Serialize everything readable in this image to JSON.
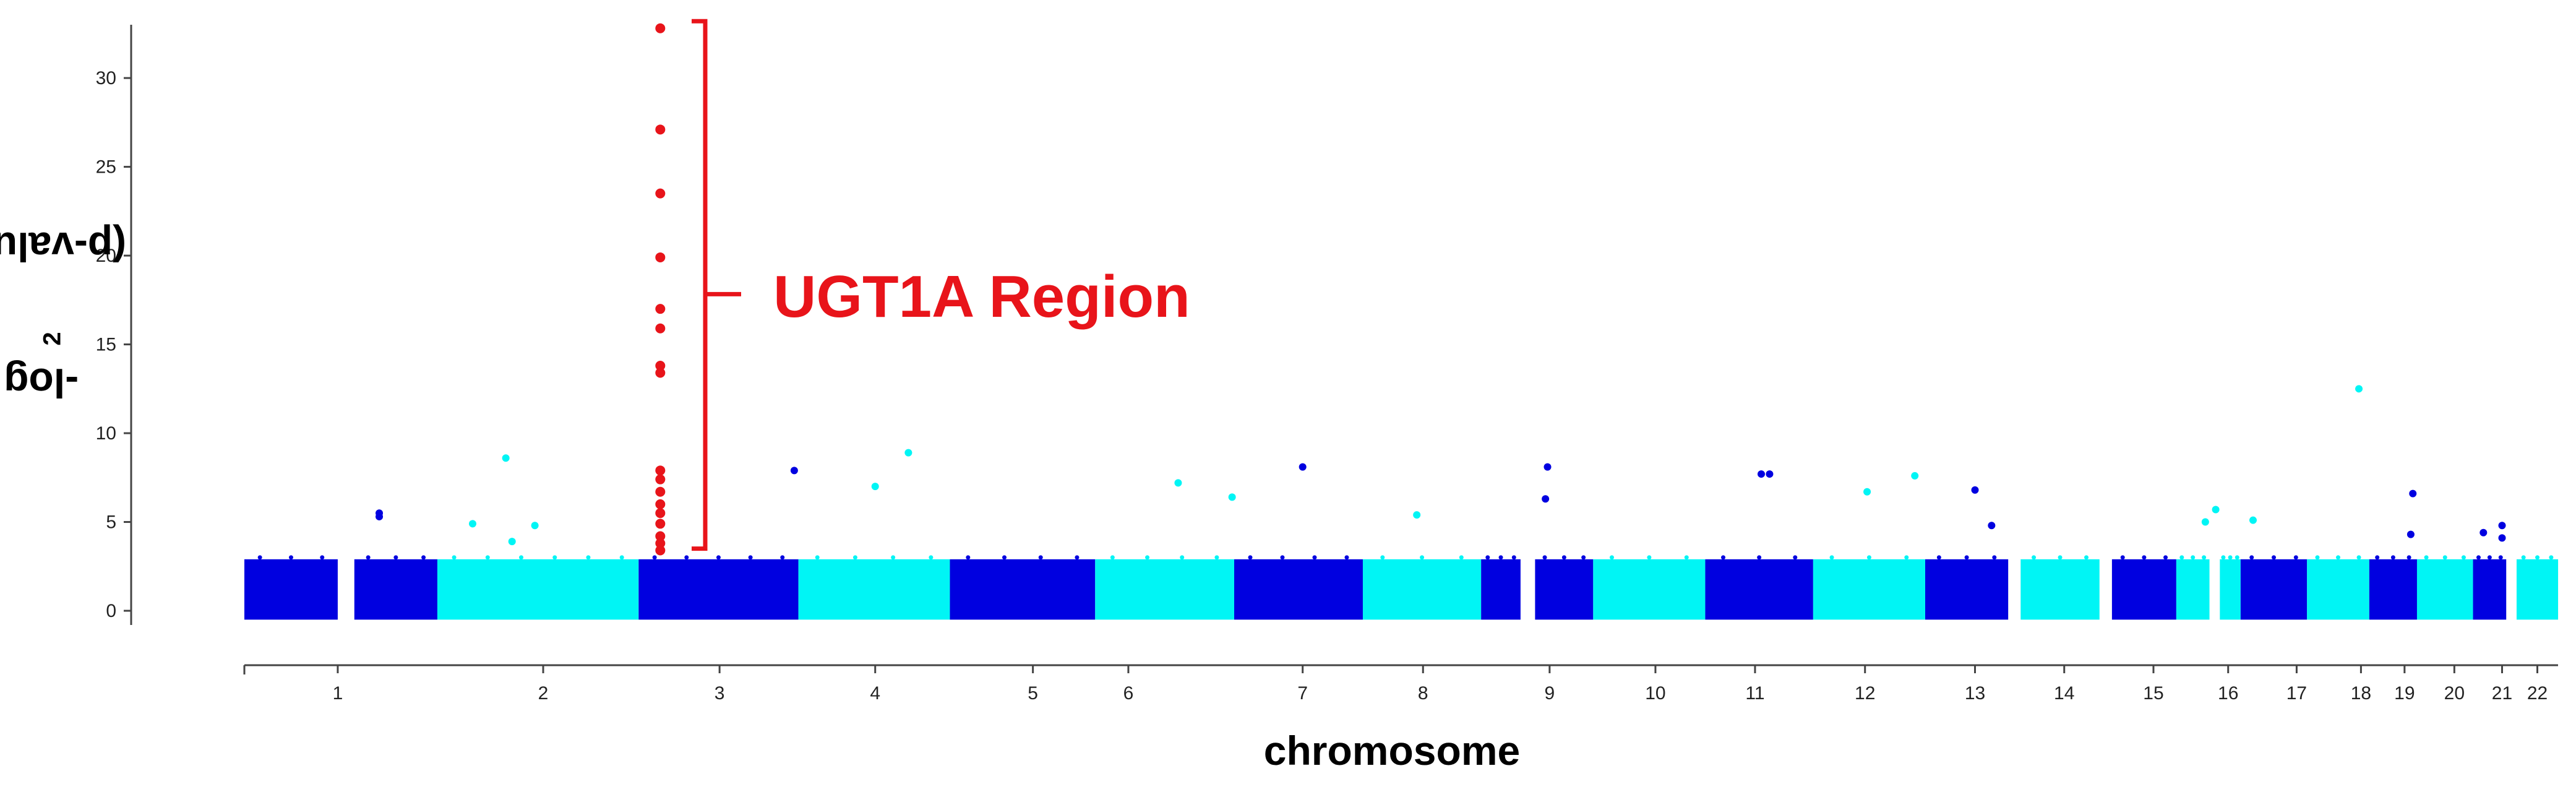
{
  "chart_data": {
    "type": "scatter",
    "subtype": "manhattan",
    "xlabel_suffix": "",
    "ylabel": {
      "prefix": "-log",
      "sub": "2",
      "suffix": "(p-value)"
    },
    "xlabel": "chromosome",
    "ylim": [
      -0.8,
      33
    ],
    "yticks": [
      0,
      5,
      10,
      15,
      20,
      25,
      30
    ],
    "grid": false,
    "legend": "none",
    "colors": {
      "dark": "#0000e0",
      "light": "#00f5f5",
      "highlight": "#e8141a"
    },
    "chromosomes": [
      {
        "label": "1",
        "start": 0.0,
        "end": 0.45,
        "color": "dark"
      },
      {
        "label": "",
        "start": 0.53,
        "end": 0.93,
        "color": "dark"
      },
      {
        "label": "2",
        "start": 0.93,
        "end": 1.9,
        "color": "light"
      },
      {
        "label": "3",
        "start": 1.9,
        "end": 2.67,
        "color": "dark"
      },
      {
        "label": "4",
        "start": 2.67,
        "end": 3.4,
        "color": "light"
      },
      {
        "label": "5",
        "start": 3.4,
        "end": 4.1,
        "color": "dark"
      },
      {
        "label": "6",
        "start": 4.1,
        "end": 4.77,
        "color": "light"
      },
      {
        "label": "7",
        "start": 4.77,
        "end": 5.39,
        "color": "dark"
      },
      {
        "label": "8",
        "start": 5.39,
        "end": 5.96,
        "color": "light"
      },
      {
        "label": "",
        "start": 5.96,
        "end": 6.15,
        "color": "dark"
      },
      {
        "label": "9",
        "start": 6.22,
        "end": 6.5,
        "color": "dark"
      },
      {
        "label": "10",
        "start": 6.5,
        "end": 7.04,
        "color": "light"
      },
      {
        "label": "11",
        "start": 7.04,
        "end": 7.56,
        "color": "dark"
      },
      {
        "label": "12",
        "start": 7.56,
        "end": 8.1,
        "color": "light"
      },
      {
        "label": "13",
        "start": 8.1,
        "end": 8.5,
        "color": "dark"
      },
      {
        "label": "14",
        "start": 8.56,
        "end": 8.94,
        "color": "light"
      },
      {
        "label": "15",
        "start": 9.0,
        "end": 9.31,
        "color": "dark"
      },
      {
        "label": "16",
        "start": 9.31,
        "end": 9.47,
        "color": "light"
      },
      {
        "label": "",
        "start": 9.52,
        "end": 9.62,
        "color": "light"
      },
      {
        "label": "17",
        "start": 9.62,
        "end": 9.94,
        "color": "dark"
      },
      {
        "label": "18",
        "start": 9.94,
        "end": 10.24,
        "color": "light"
      },
      {
        "label": "19",
        "start": 10.24,
        "end": 10.47,
        "color": "dark"
      },
      {
        "label": "20",
        "start": 10.47,
        "end": 10.74,
        "color": "light"
      },
      {
        "label": "21",
        "start": 10.74,
        "end": 10.9,
        "color": "dark"
      },
      {
        "label": "22",
        "start": 10.95,
        "end": 11.15,
        "color": "light"
      }
    ],
    "baseline_band": [
      -0.5,
      2.9
    ],
    "xticks": [
      {
        "label": "1",
        "x": 0.45
      },
      {
        "label": "2",
        "x": 1.44
      },
      {
        "label": "3",
        "x": 2.29
      },
      {
        "label": "4",
        "x": 3.04
      },
      {
        "label": "5",
        "x": 3.8
      },
      {
        "label": "6",
        "x": 4.26
      },
      {
        "label": "7",
        "x": 5.1
      },
      {
        "label": "8",
        "x": 5.68
      },
      {
        "label": "9",
        "x": 6.29
      },
      {
        "label": "10",
        "x": 6.8
      },
      {
        "label": "11",
        "x": 7.28
      },
      {
        "label": "12",
        "x": 7.81
      },
      {
        "label": "13",
        "x": 8.34
      },
      {
        "label": "14",
        "x": 8.77
      },
      {
        "label": "15",
        "x": 9.2
      },
      {
        "label": "16",
        "x": 9.56
      },
      {
        "label": "17",
        "x": 9.89
      },
      {
        "label": "18",
        "x": 10.2
      },
      {
        "label": "19",
        "x": 10.41
      },
      {
        "label": "20",
        "x": 10.65
      },
      {
        "label": "21",
        "x": 10.88
      },
      {
        "label": "22",
        "x": 11.05
      }
    ],
    "xlim": [
      0,
      11.12
    ],
    "highlight_points": [
      {
        "x": 1.9,
        "y": 32.8
      },
      {
        "x": 1.9,
        "y": 27.1
      },
      {
        "x": 1.9,
        "y": 23.5
      },
      {
        "x": 1.9,
        "y": 19.9
      },
      {
        "x": 1.9,
        "y": 17.0
      },
      {
        "x": 1.9,
        "y": 15.9
      },
      {
        "x": 1.9,
        "y": 13.8
      },
      {
        "x": 1.9,
        "y": 13.4
      },
      {
        "x": 1.9,
        "y": 7.9
      },
      {
        "x": 1.9,
        "y": 7.4
      },
      {
        "x": 1.9,
        "y": 6.7
      },
      {
        "x": 1.9,
        "y": 6.0
      },
      {
        "x": 1.9,
        "y": 5.5
      },
      {
        "x": 1.9,
        "y": 4.9
      },
      {
        "x": 1.9,
        "y": 4.2
      },
      {
        "x": 1.9,
        "y": 3.8
      },
      {
        "x": 1.9,
        "y": 3.4
      }
    ],
    "scatter_points": [
      {
        "x": 0.65,
        "y": 5.5,
        "color": "dark"
      },
      {
        "x": 0.65,
        "y": 5.3,
        "color": "dark"
      },
      {
        "x": 1.1,
        "y": 4.9,
        "color": "light"
      },
      {
        "x": 1.26,
        "y": 8.6,
        "color": "light"
      },
      {
        "x": 1.29,
        "y": 3.9,
        "color": "light"
      },
      {
        "x": 1.4,
        "y": 4.8,
        "color": "light"
      },
      {
        "x": 2.65,
        "y": 7.9,
        "color": "dark"
      },
      {
        "x": 3.04,
        "y": 7.0,
        "color": "light"
      },
      {
        "x": 3.2,
        "y": 8.9,
        "color": "light"
      },
      {
        "x": 4.5,
        "y": 7.2,
        "color": "light"
      },
      {
        "x": 4.76,
        "y": 6.4,
        "color": "light"
      },
      {
        "x": 5.1,
        "y": 8.1,
        "color": "dark"
      },
      {
        "x": 5.65,
        "y": 5.4,
        "color": "light"
      },
      {
        "x": 6.28,
        "y": 8.1,
        "color": "dark"
      },
      {
        "x": 6.27,
        "y": 6.3,
        "color": "dark"
      },
      {
        "x": 7.31,
        "y": 7.7,
        "color": "dark"
      },
      {
        "x": 7.35,
        "y": 7.7,
        "color": "dark"
      },
      {
        "x": 7.82,
        "y": 6.7,
        "color": "light"
      },
      {
        "x": 8.05,
        "y": 7.6,
        "color": "light"
      },
      {
        "x": 8.34,
        "y": 6.8,
        "color": "dark"
      },
      {
        "x": 8.42,
        "y": 4.8,
        "color": "dark"
      },
      {
        "x": 9.45,
        "y": 5.0,
        "color": "light"
      },
      {
        "x": 9.5,
        "y": 5.7,
        "color": "light"
      },
      {
        "x": 9.68,
        "y": 5.1,
        "color": "light"
      },
      {
        "x": 10.19,
        "y": 12.5,
        "color": "light"
      },
      {
        "x": 10.45,
        "y": 6.6,
        "color": "dark"
      },
      {
        "x": 10.44,
        "y": 4.3,
        "color": "dark"
      },
      {
        "x": 10.79,
        "y": 4.4,
        "color": "dark"
      },
      {
        "x": 10.88,
        "y": 4.8,
        "color": "dark"
      },
      {
        "x": 10.88,
        "y": 4.1,
        "color": "dark"
      }
    ],
    "annotation": {
      "text": "UGT1A Region",
      "bracket_y": [
        3.5,
        33.2
      ]
    }
  }
}
